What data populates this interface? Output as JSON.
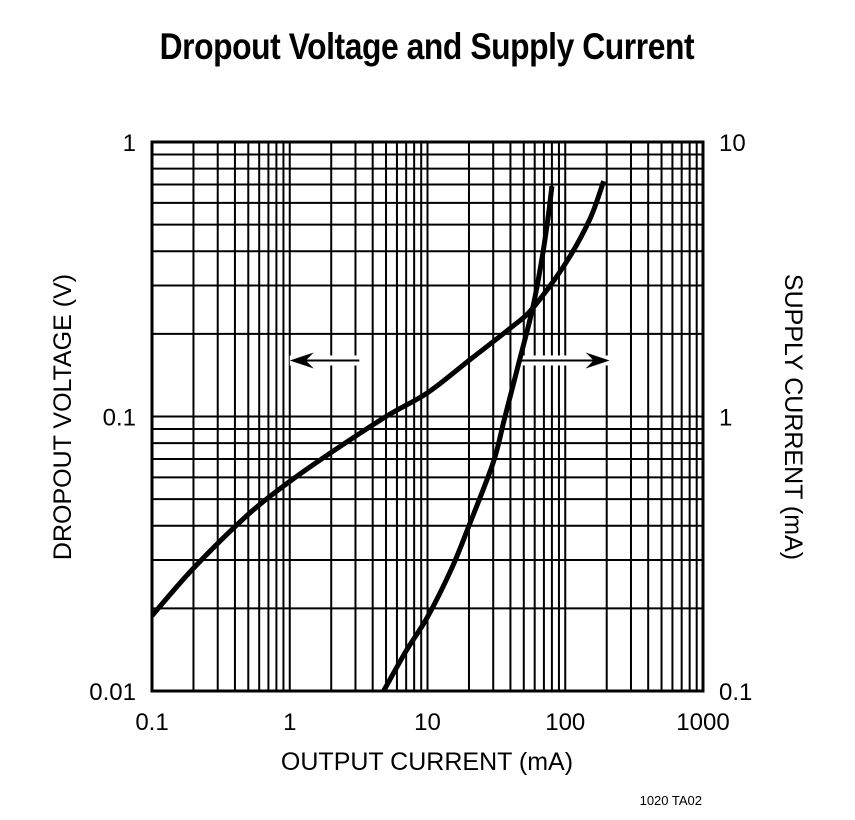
{
  "chart_data": {
    "type": "line",
    "title": "Dropout Voltage and Supply Current",
    "xlabel": "OUTPUT CURRENT (mA)",
    "ylabel": "DROPOUT VOLTAGE (V)",
    "y2label": "SUPPLY CURRENT (mA)",
    "xscale": "log",
    "yscale": "log",
    "xlim": [
      0.1,
      1000
    ],
    "ylim": [
      0.01,
      1
    ],
    "y2lim": [
      0.1,
      10
    ],
    "grid": true,
    "legend": "none (arrows indicate axis per curve)",
    "x_ticks": [
      "0.1",
      "1",
      "10",
      "100",
      "1000"
    ],
    "y_ticks": [
      "0.01",
      "0.1",
      "1"
    ],
    "y2_ticks": [
      "0.1",
      "1",
      "10"
    ],
    "series": [
      {
        "name": "Dropout Voltage",
        "axis": "left",
        "x": [
          0.1,
          0.2,
          0.5,
          1,
          2,
          5,
          10,
          20,
          40,
          58,
          100,
          150,
          190
        ],
        "y": [
          0.0188,
          0.028,
          0.044,
          0.058,
          0.074,
          0.1,
          0.122,
          0.16,
          0.21,
          0.248,
          0.36,
          0.52,
          0.72
        ]
      },
      {
        "name": "Supply Current",
        "axis": "right",
        "x": [
          4.8,
          7,
          10,
          15,
          20,
          30,
          36,
          45,
          58,
          68,
          75,
          80
        ],
        "y": [
          0.1,
          0.14,
          0.186,
          0.28,
          0.4,
          0.68,
          0.97,
          1.5,
          2.48,
          3.8,
          5.3,
          6.9
        ]
      }
    ],
    "annotations": [
      {
        "type": "arrow",
        "direction": "left",
        "x_from": 3.2,
        "x_to": 1.0,
        "y": 0.16,
        "meaning": "Dropout curve reads left axis"
      },
      {
        "type": "arrow",
        "direction": "right",
        "x_from": 48,
        "x_to": 210,
        "y": 0.16,
        "meaning": "Supply curve reads right axis"
      }
    ]
  },
  "footer": {
    "code": "1020 TA02"
  }
}
